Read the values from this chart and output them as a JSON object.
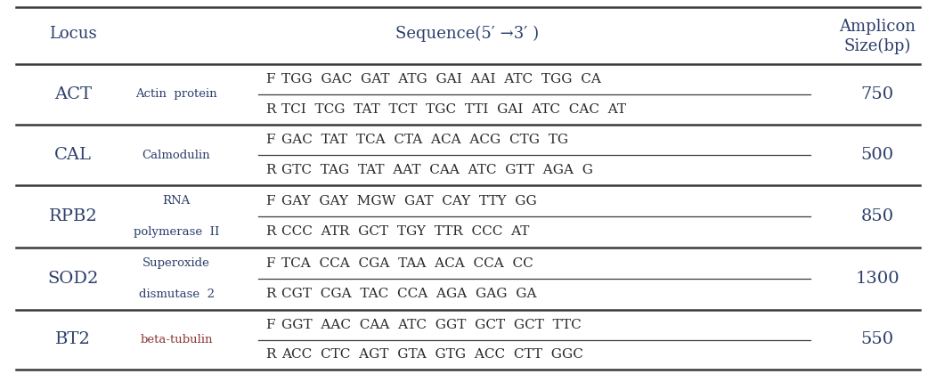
{
  "title_locus": "Locus",
  "title_sequence": "Sequence(5′ →3′ )",
  "title_amplicon_line1": "Amplicon",
  "title_amplicon_line2": "Size(bp)",
  "background_color": "#ffffff",
  "text_dark": "#2c3e6b",
  "text_name_brown": "#8B4513",
  "text_name_dark": "#2c3e6b",
  "rows": [
    {
      "locus": "ACT",
      "name_lines": [
        "Actin  protein"
      ],
      "name_color": "#2c3e6b",
      "primers": [
        {
          "dir": "F",
          "seq": "TGG  GAC  GAT  ATG  GAI  AAI  ATC  TGG  CA"
        },
        {
          "dir": "R",
          "seq": "TCI  TCG  TAT  TCT  TGC  TTI  GAI  ATC  CAC  AT"
        }
      ],
      "size": "750"
    },
    {
      "locus": "CAL",
      "name_lines": [
        "Calmodulin"
      ],
      "name_color": "#2c3e6b",
      "primers": [
        {
          "dir": "F",
          "seq": "GAC  TAT  TCA  CTA  ACA  ACG  CTG  TG"
        },
        {
          "dir": "R",
          "seq": "GTC  TAG  TAT  AAT  CAA  ATC  GTT  AGA  G"
        }
      ],
      "size": "500"
    },
    {
      "locus": "RPB2",
      "name_lines": [
        "RNA",
        "polymerase  II"
      ],
      "name_color": "#2c3e6b",
      "primers": [
        {
          "dir": "F",
          "seq": "GAY  GAY  MGW  GAT  CAY  TTY  GG"
        },
        {
          "dir": "R",
          "seq": "CCC  ATR  GCT  TGY  TTR  CCC  AT"
        }
      ],
      "size": "850"
    },
    {
      "locus": "SOD2",
      "name_lines": [
        "Superoxide",
        "dismutase  2"
      ],
      "name_color": "#2c3e6b",
      "primers": [
        {
          "dir": "F",
          "seq": "TCA  CCA  CGA  TAA  ACA  CCA  CC"
        },
        {
          "dir": "R",
          "seq": "CGT  CGA  TAC  CCA  AGA  GAG  GA"
        }
      ],
      "size": "1300"
    },
    {
      "locus": "BT2",
      "name_lines": [
        "beta-tubulin"
      ],
      "name_color": "#8B3A3A",
      "primers": [
        {
          "dir": "F",
          "seq": "GGT  AAC  CAA  ATC  GGT  GCT  GCT  TTC"
        },
        {
          "dir": "R",
          "seq": "ACC  CTC  AGT  GTA  GTG  ACC  CTT  GGC"
        }
      ],
      "size": "550"
    }
  ]
}
